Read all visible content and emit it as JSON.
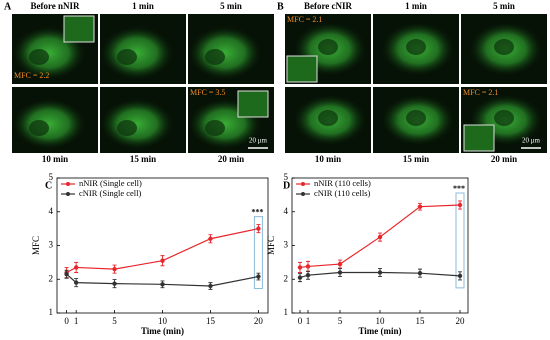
{
  "image_panels": [
    {
      "label": "A",
      "top_labels": [
        "Before nNIR",
        "1 min",
        "5 min"
      ],
      "bottom_labels": [
        "10 min",
        "15 min",
        "20 min"
      ],
      "annotations": [
        "MFC = 2.2",
        "MFC = 3.5"
      ],
      "scale_bar": "20 μm"
    },
    {
      "label": "B",
      "top_labels": [
        "Before cNIR",
        "1 min",
        "5 min"
      ],
      "bottom_labels": [
        "10 min",
        "15 min",
        "20 min"
      ],
      "annotations": [
        "MFC = 2.1",
        "MFC = 2.1"
      ],
      "scale_bar": "20 μm"
    }
  ],
  "chart_data": [
    {
      "type": "line",
      "panel_label": "C",
      "xlabel": "Time (min)",
      "ylabel": "MFC",
      "x": [
        0,
        1,
        5,
        10,
        15,
        20
      ],
      "xlim": [
        -1,
        21
      ],
      "xticks": [
        0,
        1,
        5,
        10,
        15,
        20
      ],
      "ylim": [
        1,
        5
      ],
      "yticks": [
        1,
        2,
        3,
        4,
        5
      ],
      "legend": "upper left",
      "annotation": "***",
      "series": [
        {
          "name": "nNIR (Single cell)",
          "color": "#e8262b",
          "values": [
            2.2,
            2.35,
            2.3,
            2.55,
            3.2,
            3.5
          ],
          "errors": [
            0.15,
            0.15,
            0.12,
            0.15,
            0.12,
            0.12
          ]
        },
        {
          "name": "cNIR (Single cell)",
          "color": "#333333",
          "values": [
            2.15,
            1.9,
            1.87,
            1.85,
            1.8,
            2.08
          ],
          "errors": [
            0.12,
            0.12,
            0.12,
            0.1,
            0.1,
            0.1
          ]
        }
      ]
    },
    {
      "type": "line",
      "panel_label": "D",
      "xlabel": "Time (min)",
      "ylabel": "MFC",
      "x": [
        0,
        1,
        5,
        10,
        15,
        20
      ],
      "xlim": [
        -1,
        21
      ],
      "xticks": [
        0,
        1,
        5,
        10,
        15,
        20
      ],
      "ylim": [
        1,
        5
      ],
      "yticks": [
        1,
        2,
        3,
        4,
        5
      ],
      "legend": "upper left",
      "annotation": "***",
      "series": [
        {
          "name": "nNIR (110 cells)",
          "color": "#e8262b",
          "values": [
            2.35,
            2.38,
            2.45,
            3.25,
            4.15,
            4.2
          ],
          "errors": [
            0.15,
            0.15,
            0.12,
            0.12,
            0.1,
            0.12
          ]
        },
        {
          "name": "cNIR (110 cells)",
          "color": "#333333",
          "values": [
            2.05,
            2.12,
            2.2,
            2.2,
            2.18,
            2.1
          ],
          "errors": [
            0.12,
            0.12,
            0.12,
            0.12,
            0.12,
            0.12
          ]
        }
      ]
    }
  ]
}
